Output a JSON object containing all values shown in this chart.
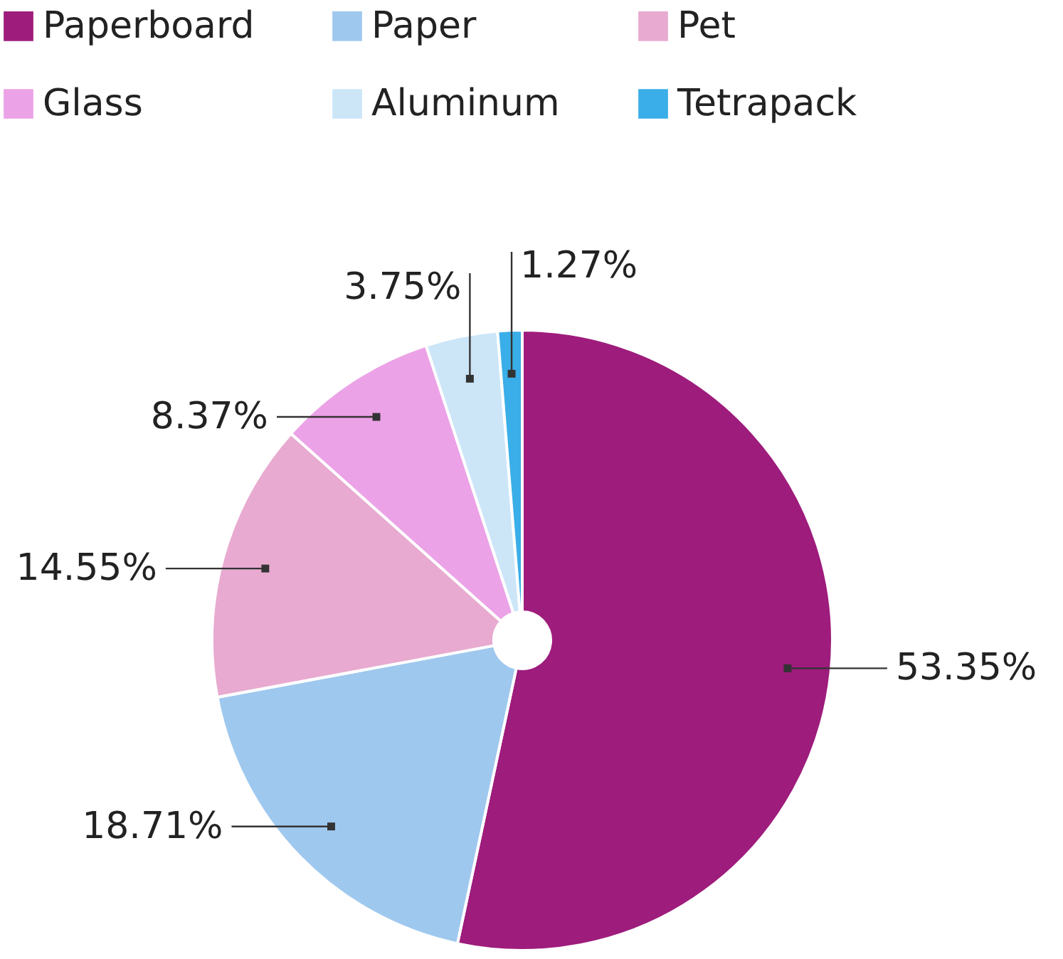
{
  "chart_data": {
    "type": "pie",
    "categories": [
      "Paperboard",
      "Paper",
      "Pet",
      "Glass",
      "Aluminum",
      "Tetrapack"
    ],
    "values": [
      53.35,
      18.71,
      14.55,
      8.37,
      3.75,
      1.27
    ],
    "colors": [
      "#9e1c7c",
      "#9fc8ee",
      "#e8aad0",
      "#eca2e6",
      "#cce6f8",
      "#3aaee8"
    ],
    "value_labels": [
      "53.35%",
      "18.71%",
      "14.55%",
      "8.37%",
      "3.75%",
      "1.27%"
    ],
    "legend": "top"
  }
}
